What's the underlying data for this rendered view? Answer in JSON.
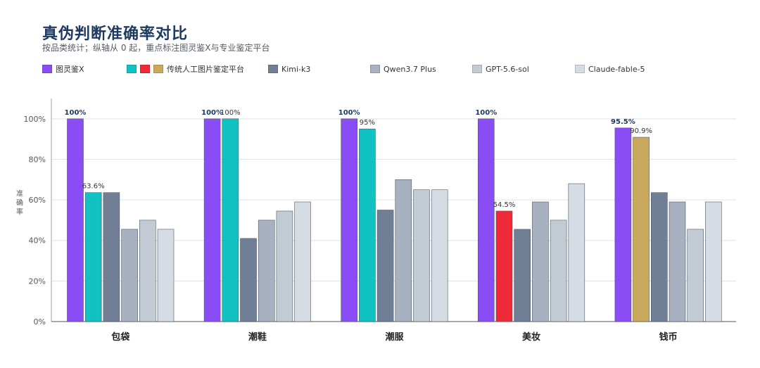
{
  "header": {
    "title": "真伪判断准确率对比",
    "subtitle": "按品类统计；纵轴从 0 起，重点标注图灵鉴X与专业鉴定平台"
  },
  "legend": [
    {
      "label": "图灵鉴X",
      "colors": [
        "#8a4cf5"
      ]
    },
    {
      "label": "传统人工图片鉴定平台",
      "colors": [
        "#10c2c2",
        "#ee2a38",
        "#c9a95c"
      ]
    },
    {
      "label": "Kimi-k3",
      "colors": [
        "#707f96"
      ]
    },
    {
      "label": "Qwen3.7 Plus",
      "colors": [
        "#a7b1bf"
      ]
    },
    {
      "label": "GPT-5.6-sol",
      "colors": [
        "#c2cad3"
      ]
    },
    {
      "label": "Claude-fable-5",
      "colors": [
        "#d5dce3"
      ]
    }
  ],
  "chart_data": {
    "type": "bar",
    "title": "真伪判断准确率对比",
    "ylabel": "准确率",
    "ylim": [
      0,
      110
    ],
    "yticks": [
      0,
      20,
      40,
      60,
      80,
      100
    ],
    "ytick_labels": [
      "0%",
      "20%",
      "40%",
      "60%",
      "80%",
      "100%"
    ],
    "grid": true,
    "legend_position": "top",
    "categories": [
      "包袋",
      "潮鞋",
      "潮服",
      "美妆",
      "钱币"
    ],
    "groups": [
      {
        "category": "包袋",
        "bars": [
          {
            "series": "图灵鉴X",
            "value": 100,
            "label": "100%",
            "bold": true,
            "color": "#8a4cf5"
          },
          {
            "series": "传统人工图片鉴定平台",
            "value": 63.6,
            "label": "63.6%",
            "color": "#10c2c2"
          },
          {
            "series": "Kimi-k3",
            "value": 63.6,
            "color": "#707f96"
          },
          {
            "series": "Qwen3.7 Plus",
            "value": 45.5,
            "color": "#a7b1bf"
          },
          {
            "series": "GPT-5.6-sol",
            "value": 50,
            "color": "#c2cad3"
          },
          {
            "series": "Claude-fable-5",
            "value": 45.5,
            "color": "#d5dce3"
          }
        ]
      },
      {
        "category": "潮鞋",
        "bars": [
          {
            "series": "图灵鉴X",
            "value": 100,
            "label": "100%",
            "bold": true,
            "color": "#8a4cf5"
          },
          {
            "series": "传统人工图片鉴定平台",
            "value": 100,
            "label": "100%",
            "color": "#10c2c2"
          },
          {
            "series": "Kimi-k3",
            "value": 41,
            "color": "#707f96"
          },
          {
            "series": "Qwen3.7 Plus",
            "value": 50,
            "color": "#a7b1bf"
          },
          {
            "series": "GPT-5.6-sol",
            "value": 54.5,
            "color": "#c2cad3"
          },
          {
            "series": "Claude-fable-5",
            "value": 59,
            "color": "#d5dce3"
          }
        ]
      },
      {
        "category": "潮服",
        "bars": [
          {
            "series": "图灵鉴X",
            "value": 100,
            "label": "100%",
            "bold": true,
            "color": "#8a4cf5"
          },
          {
            "series": "传统人工图片鉴定平台",
            "value": 95,
            "label": "95%",
            "color": "#10c2c2"
          },
          {
            "series": "Kimi-k3",
            "value": 55,
            "color": "#707f96"
          },
          {
            "series": "Qwen3.7 Plus",
            "value": 70,
            "color": "#a7b1bf"
          },
          {
            "series": "GPT-5.6-sol",
            "value": 65,
            "color": "#c2cad3"
          },
          {
            "series": "Claude-fable-5",
            "value": 65,
            "color": "#d5dce3"
          }
        ]
      },
      {
        "category": "美妆",
        "bars": [
          {
            "series": "图灵鉴X",
            "value": 100,
            "label": "100%",
            "bold": true,
            "color": "#8a4cf5"
          },
          {
            "series": "传统人工图片鉴定平台",
            "value": 54.5,
            "label": "54.5%",
            "color": "#ee2a38"
          },
          {
            "series": "Kimi-k3",
            "value": 45.5,
            "color": "#707f96"
          },
          {
            "series": "Qwen3.7 Plus",
            "value": 59,
            "color": "#a7b1bf"
          },
          {
            "series": "GPT-5.6-sol",
            "value": 50,
            "color": "#c2cad3"
          },
          {
            "series": "Claude-fable-5",
            "value": 68,
            "color": "#d5dce3"
          }
        ]
      },
      {
        "category": "钱币",
        "bars": [
          {
            "series": "图灵鉴X",
            "value": 95.5,
            "label": "95.5%",
            "bold": true,
            "color": "#8a4cf5"
          },
          {
            "series": "传统人工图片鉴定平台",
            "value": 90.9,
            "label": "90.9%",
            "color": "#c9a95c"
          },
          {
            "series": "Kimi-k3",
            "value": 63.6,
            "color": "#707f96"
          },
          {
            "series": "Qwen3.7 Plus",
            "value": 59,
            "color": "#a7b1bf"
          },
          {
            "series": "GPT-5.6-sol",
            "value": 45.5,
            "color": "#c2cad3"
          },
          {
            "series": "Claude-fable-5",
            "value": 59,
            "color": "#d5dce3"
          }
        ]
      }
    ]
  }
}
